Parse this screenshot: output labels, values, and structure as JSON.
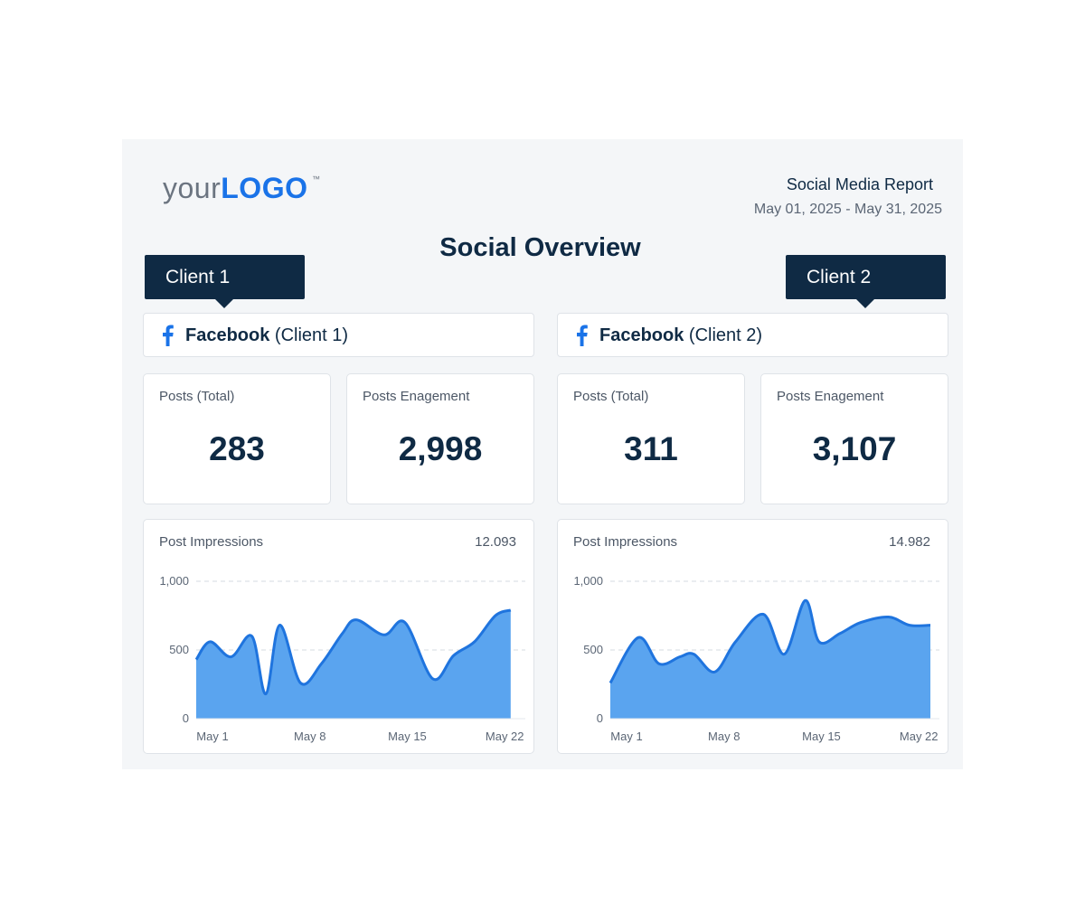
{
  "header": {
    "logo_your": "your",
    "logo_mark": "LOGO",
    "logo_tm": "™",
    "report_title": "Social Media Report",
    "report_range": "May 01, 2025 - May 31, 2025",
    "overview_title": "Social Overview"
  },
  "colors": {
    "navy": "#0f2a44",
    "accent_blue": "#1a73e8",
    "area_fill": "#5aa4ef",
    "line": "#1f74de"
  },
  "clients": [
    {
      "tab_label": "Client 1",
      "platform_icon": "facebook-icon",
      "platform_name": "Facebook",
      "platform_suffix": "(Client 1)",
      "posts_label": "Posts (Total)",
      "posts_value": "283",
      "engagement_label": "Posts Enagement",
      "engagement_value": "2,998",
      "impressions_label": "Post Impressions",
      "impressions_total": "12.093"
    },
    {
      "tab_label": "Client 2",
      "platform_icon": "facebook-icon",
      "platform_name": "Facebook",
      "platform_suffix": "(Client 2)",
      "posts_label": "Posts (Total)",
      "posts_value": "311",
      "engagement_label": "Posts Enagement",
      "engagement_value": "3,107",
      "impressions_label": "Post Impressions",
      "impressions_total": "14.982"
    }
  ],
  "chart_data": [
    {
      "type": "area",
      "title": "Post Impressions",
      "x": [
        1,
        3,
        5,
        7,
        8,
        10,
        11,
        13,
        15,
        16,
        18,
        19,
        21,
        22
      ],
      "x_tick_labels": [
        "May 1",
        "May 8",
        "May 15",
        "May 22"
      ],
      "x_tick_values": [
        1,
        8,
        15,
        22
      ],
      "xlim": [
        1,
        24
      ],
      "series": [
        {
          "x": [
            1,
            2,
            3.5,
            5,
            6,
            7,
            8.5,
            10,
            11.5,
            12.5,
            14.5,
            16,
            18,
            19.5,
            21,
            22.5,
            23.6
          ],
          "values": [
            430,
            560,
            450,
            600,
            180,
            680,
            260,
            400,
            620,
            720,
            610,
            700,
            290,
            460,
            560,
            750,
            790
          ]
        }
      ],
      "y_tick_values": [
        0,
        500,
        1000
      ],
      "y_tick_labels": [
        "0",
        "500",
        "1,000"
      ],
      "ylim": [
        0,
        1000
      ],
      "grid": "horizontal-dashed"
    },
    {
      "type": "area",
      "title": "Post Impressions",
      "x_tick_labels": [
        "May 1",
        "May 8",
        "May 15",
        "May 22"
      ],
      "x_tick_values": [
        1,
        8,
        15,
        22
      ],
      "xlim": [
        1,
        24
      ],
      "series": [
        {
          "x": [
            1,
            3,
            4.5,
            6,
            7,
            8.5,
            10,
            12,
            13.5,
            15,
            16,
            17.5,
            19,
            21,
            22.5,
            24
          ],
          "values": [
            260,
            590,
            400,
            450,
            470,
            340,
            560,
            760,
            470,
            860,
            560,
            620,
            700,
            740,
            680,
            680
          ]
        }
      ],
      "y_tick_values": [
        0,
        500,
        1000
      ],
      "y_tick_labels": [
        "0",
        "500",
        "1,000"
      ],
      "ylim": [
        0,
        1000
      ],
      "grid": "horizontal-dashed"
    }
  ]
}
